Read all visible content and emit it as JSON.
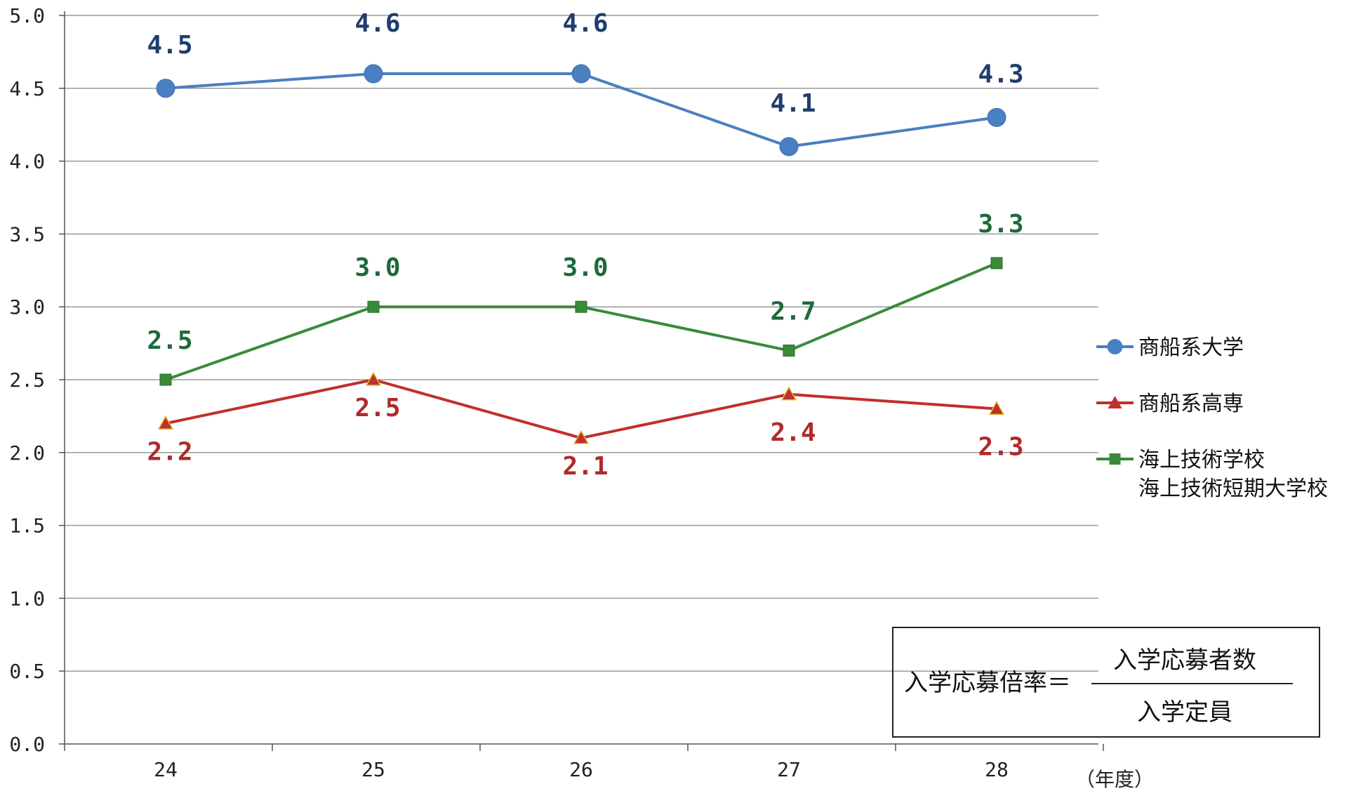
{
  "chart_data": {
    "type": "line",
    "categories": [
      "24",
      "25",
      "26",
      "27",
      "28"
    ],
    "x_unit": "（年度）",
    "ylim": [
      0,
      5
    ],
    "y_ticks": [
      "0.0",
      "0.5",
      "1.0",
      "1.5",
      "2.0",
      "2.5",
      "3.0",
      "3.5",
      "4.0",
      "4.5",
      "5.0"
    ],
    "grid": true,
    "legend_position": "right",
    "series": [
      {
        "name": "商船系大学",
        "marker": "circle",
        "color": "#4a7fc1",
        "label_color": "#1f3e6e",
        "values": [
          4.5,
          4.6,
          4.6,
          4.1,
          4.3
        ],
        "labels": [
          "4.5",
          "4.6",
          "4.6",
          "4.1",
          "4.3"
        ]
      },
      {
        "name": "商船系高専",
        "marker": "triangle",
        "color": "#c0302c",
        "label_color": "#b02a2a",
        "values": [
          2.2,
          2.5,
          2.1,
          2.4,
          2.3
        ],
        "labels": [
          "2.2",
          "2.5",
          "2.1",
          "2.4",
          "2.3"
        ]
      },
      {
        "name": "海上技術学校",
        "name_line2": "海上技術短期大学校",
        "marker": "square",
        "color": "#3a8a3a",
        "label_color": "#1d6a3a",
        "values": [
          2.5,
          3.0,
          3.0,
          2.7,
          3.3
        ],
        "labels": [
          "2.5",
          "3.0",
          "3.0",
          "2.7",
          "3.3"
        ]
      }
    ],
    "formula": {
      "lhs": "入学応募倍率＝",
      "numerator": "入学応募者数",
      "denominator": "入学定員"
    }
  }
}
